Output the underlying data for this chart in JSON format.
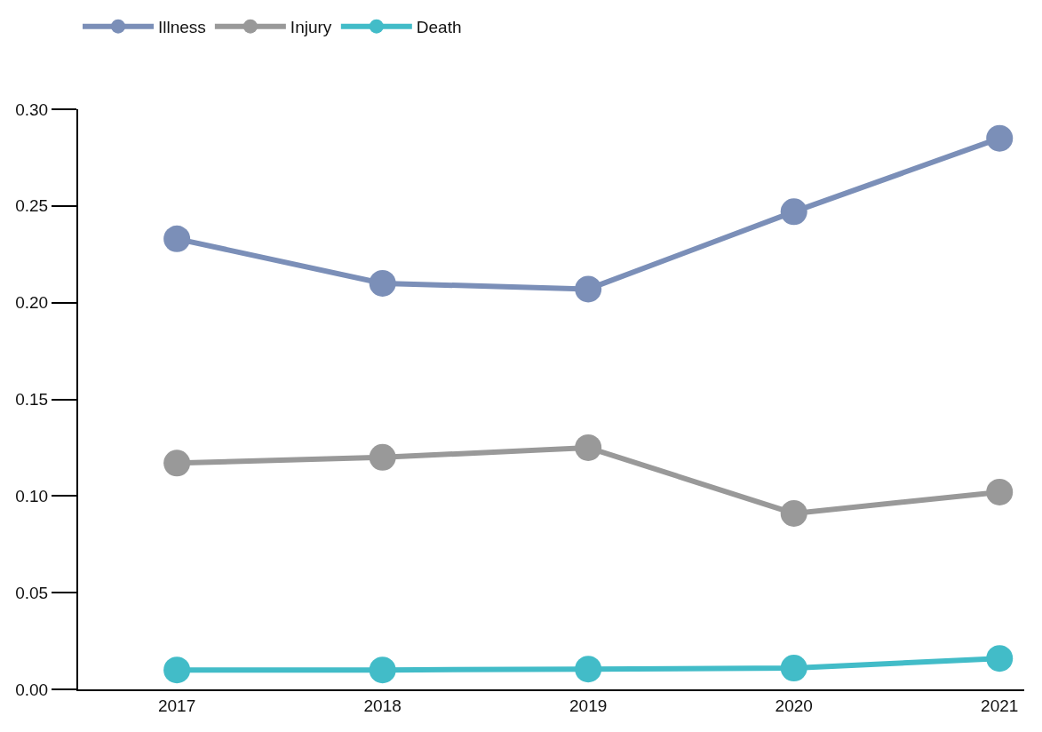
{
  "chart_data": {
    "type": "line",
    "categories": [
      "2017",
      "2018",
      "2019",
      "2020",
      "2021"
    ],
    "series": [
      {
        "name": "Illness",
        "color": "#7b8fb8",
        "values": [
          0.233,
          0.21,
          0.207,
          0.247,
          0.285
        ]
      },
      {
        "name": "Injury",
        "color": "#999999",
        "values": [
          0.117,
          0.12,
          0.125,
          0.091,
          0.102
        ]
      },
      {
        "name": "Death",
        "color": "#42bcc8",
        "values": [
          0.01,
          0.01,
          0.0105,
          0.011,
          0.016
        ]
      }
    ],
    "ylim": [
      0,
      0.3
    ],
    "yticks": [
      {
        "value": 0,
        "label": "0.00"
      },
      {
        "value": 0.05,
        "label": "0.05"
      },
      {
        "value": 0.1,
        "label": "0.10"
      },
      {
        "value": 0.15,
        "label": "0.15"
      },
      {
        "value": 0.2,
        "label": "0.20"
      },
      {
        "value": 0.25,
        "label": "0.25"
      },
      {
        "value": 0.3,
        "label": "0.30"
      }
    ],
    "grid": false,
    "legend": "top left",
    "marker": "circle",
    "line_style": "solid"
  }
}
